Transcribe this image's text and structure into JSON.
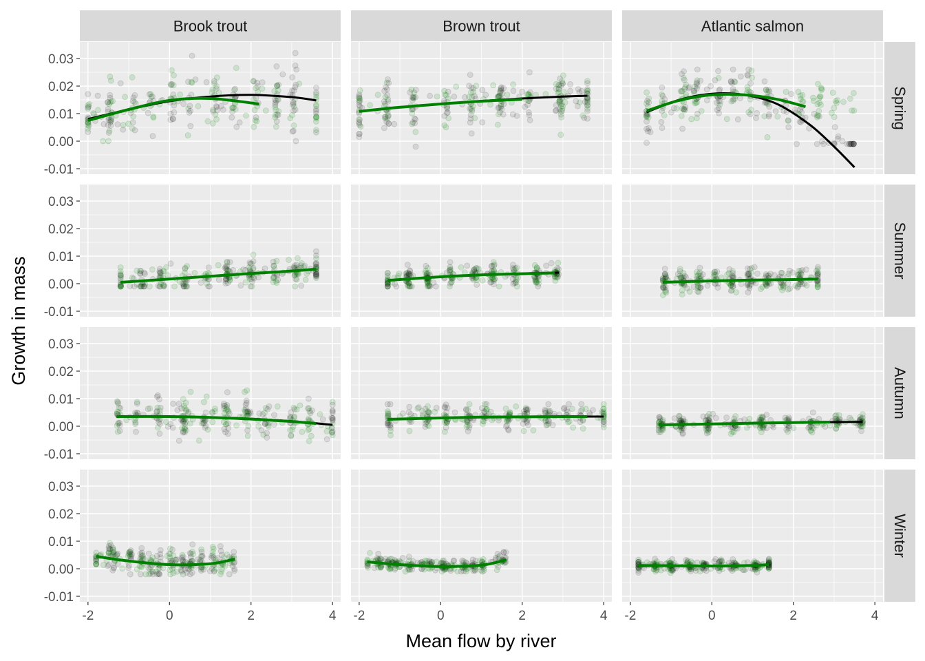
{
  "chart_data": {
    "type": "scatter",
    "xlabel": "Mean flow by river",
    "ylabel": "Growth in mass",
    "xlim": [
      -2.2,
      4.2
    ],
    "ylim": [
      -0.012,
      0.036
    ],
    "x_ticks": [
      -2,
      0,
      2,
      4
    ],
    "y_ticks": [
      -0.01,
      0.0,
      0.01,
      0.02,
      0.03
    ],
    "x_tick_labels": [
      "-2",
      "0",
      "2",
      "4"
    ],
    "y_tick_labels": [
      "-0.01",
      "0.00",
      "0.01",
      "0.02",
      "0.03"
    ],
    "columns": [
      "Brook trout",
      "Brown trout",
      "Atlantic salmon"
    ],
    "rows": [
      "Spring",
      "Summer",
      "Autumn",
      "Winter"
    ],
    "colors": {
      "black_series": "#000000",
      "green_series": "#008000",
      "panel_bg": "#ebebeb",
      "strip_bg": "#d9d9d9"
    },
    "grid": true,
    "legend": "none",
    "panels": [
      {
        "row": "Spring",
        "col": "Brook trout",
        "x_range": [
          -2.0,
          3.6
        ],
        "points_y_range": [
          0.0,
          0.033
        ],
        "black_fit": {
          "x": [
            -2.0,
            -1.0,
            0.0,
            1.0,
            2.0,
            3.0,
            3.6
          ],
          "y": [
            0.008,
            0.0115,
            0.0145,
            0.0162,
            0.0168,
            0.016,
            0.0148
          ]
        },
        "green_fit": {
          "x": [
            -2.0,
            -1.0,
            0.0,
            1.0,
            2.2
          ],
          "y": [
            0.0075,
            0.0115,
            0.0148,
            0.0155,
            0.0135
          ]
        }
      },
      {
        "row": "Spring",
        "col": "Brown trout",
        "x_range": [
          -2.0,
          3.6
        ],
        "points_y_range": [
          -0.002,
          0.025
        ],
        "black_fit": {
          "x": [
            -2.0,
            -1.0,
            0.0,
            1.0,
            2.0,
            3.0,
            3.6
          ],
          "y": [
            0.0108,
            0.0123,
            0.0135,
            0.0146,
            0.0155,
            0.0162,
            0.0165
          ]
        },
        "green_fit": {
          "x": [
            -2.0,
            -1.0,
            0.0,
            1.0,
            2.0
          ],
          "y": [
            0.0108,
            0.0123,
            0.0135,
            0.0145,
            0.0152
          ]
        }
      },
      {
        "row": "Spring",
        "col": "Atlantic salmon",
        "x_range": [
          -1.6,
          3.5
        ],
        "points_y_range": [
          -0.001,
          0.026
        ],
        "black_fit": {
          "x": [
            -1.6,
            -0.8,
            0.0,
            0.8,
            1.6,
            2.4,
            3.0,
            3.5
          ],
          "y": [
            0.0105,
            0.015,
            0.0172,
            0.0168,
            0.0135,
            0.006,
            -0.002,
            -0.0095
          ]
        },
        "green_fit": {
          "x": [
            -1.6,
            -0.8,
            0.0,
            0.8,
            1.6,
            2.3
          ],
          "y": [
            0.011,
            0.0148,
            0.0168,
            0.0168,
            0.0152,
            0.0125
          ]
        }
      },
      {
        "row": "Summer",
        "col": "Brook trout",
        "x_range": [
          -1.2,
          3.6
        ],
        "points_y_range": [
          -0.001,
          0.015
        ],
        "black_fit": {
          "x": [
            -1.2,
            0.0,
            1.0,
            2.0,
            3.0,
            3.6
          ],
          "y": [
            0.0005,
            0.0017,
            0.0027,
            0.0037,
            0.0046,
            0.0052
          ]
        },
        "green_fit": {
          "x": [
            -1.2,
            0.0,
            1.0,
            2.0,
            3.0,
            3.6
          ],
          "y": [
            0.0005,
            0.0017,
            0.0027,
            0.0037,
            0.0046,
            0.0053
          ]
        }
      },
      {
        "row": "Summer",
        "col": "Brown trout",
        "x_range": [
          -1.3,
          2.9
        ],
        "points_y_range": [
          -0.001,
          0.011
        ],
        "black_fit": {
          "x": [
            -1.3,
            0.0,
            1.0,
            2.0,
            2.9
          ],
          "y": [
            0.0012,
            0.0025,
            0.0032,
            0.0037,
            0.004
          ]
        },
        "green_fit": {
          "x": [
            -1.3,
            0.0,
            1.0,
            2.0,
            2.8
          ],
          "y": [
            0.0012,
            0.0025,
            0.0032,
            0.0036,
            0.0039
          ]
        }
      },
      {
        "row": "Summer",
        "col": "Atlantic salmon",
        "x_range": [
          -1.2,
          2.6
        ],
        "points_y_range": [
          -0.007,
          0.006
        ],
        "black_fit": {
          "x": [
            -1.2,
            0.0,
            1.0,
            2.0,
            2.6
          ],
          "y": [
            0.0005,
            0.001,
            0.0013,
            0.0015,
            0.0017
          ]
        },
        "green_fit": {
          "x": [
            -1.2,
            0.0,
            1.0,
            2.0,
            2.6
          ],
          "y": [
            0.0005,
            0.001,
            0.0013,
            0.0015,
            0.0017
          ]
        }
      },
      {
        "row": "Autumn",
        "col": "Brook trout",
        "x_range": [
          -1.3,
          4.0
        ],
        "points_y_range": [
          -0.01,
          0.013
        ],
        "black_fit": {
          "x": [
            -1.3,
            0.0,
            1.0,
            2.0,
            3.0,
            4.0
          ],
          "y": [
            0.0035,
            0.0035,
            0.0032,
            0.0027,
            0.0018,
            0.0005
          ]
        },
        "green_fit": {
          "x": [
            -1.3,
            0.0,
            1.0,
            2.0,
            3.0,
            3.6
          ],
          "y": [
            0.0035,
            0.0035,
            0.0032,
            0.0026,
            0.0017,
            0.001
          ]
        }
      },
      {
        "row": "Autumn",
        "col": "Brown trout",
        "x_range": [
          -1.3,
          4.0
        ],
        "points_y_range": [
          -0.005,
          0.008
        ],
        "black_fit": {
          "x": [
            -1.3,
            0.0,
            1.0,
            2.0,
            3.0,
            4.0
          ],
          "y": [
            0.0025,
            0.003,
            0.0033,
            0.0034,
            0.0035,
            0.0035
          ]
        },
        "green_fit": {
          "x": [
            -1.3,
            0.0,
            1.0,
            2.0,
            3.0,
            3.6
          ],
          "y": [
            0.0025,
            0.003,
            0.0033,
            0.0034,
            0.0035,
            0.0035
          ]
        }
      },
      {
        "row": "Autumn",
        "col": "Atlantic salmon",
        "x_range": [
          -1.3,
          3.7
        ],
        "points_y_range": [
          -0.004,
          0.005
        ],
        "black_fit": {
          "x": [
            -1.3,
            0.0,
            1.0,
            2.0,
            3.0,
            3.7
          ],
          "y": [
            0.0005,
            0.0008,
            0.0011,
            0.0013,
            0.0015,
            0.0016
          ]
        },
        "green_fit": {
          "x": [
            -1.3,
            0.0,
            1.0,
            2.0,
            2.9
          ],
          "y": [
            0.0005,
            0.0008,
            0.0011,
            0.0013,
            0.0015
          ]
        }
      },
      {
        "row": "Winter",
        "col": "Brook trout",
        "x_range": [
          -1.8,
          1.6
        ],
        "points_y_range": [
          -0.002,
          0.013
        ],
        "black_fit": {
          "x": [
            -1.8,
            -1.0,
            0.0,
            1.0,
            1.6
          ],
          "y": [
            0.0045,
            0.0028,
            0.0015,
            0.0018,
            0.0035
          ]
        },
        "green_fit": {
          "x": [
            -1.8,
            -1.0,
            0.0,
            1.0,
            1.6
          ],
          "y": [
            0.0045,
            0.0028,
            0.0015,
            0.0018,
            0.0035
          ]
        }
      },
      {
        "row": "Winter",
        "col": "Brown trout",
        "x_range": [
          -1.8,
          1.6
        ],
        "points_y_range": [
          -0.001,
          0.006
        ],
        "black_fit": {
          "x": [
            -1.8,
            -1.0,
            0.0,
            1.0,
            1.6
          ],
          "y": [
            0.0025,
            0.0015,
            0.0008,
            0.0013,
            0.0032
          ]
        },
        "green_fit": {
          "x": [
            -1.8,
            -1.0,
            0.0,
            1.0,
            1.6
          ],
          "y": [
            0.0025,
            0.0015,
            0.0008,
            0.0013,
            0.0032
          ]
        }
      },
      {
        "row": "Winter",
        "col": "Atlantic salmon",
        "x_range": [
          -1.8,
          1.4
        ],
        "points_y_range": [
          -0.002,
          0.004
        ],
        "black_fit": {
          "x": [
            -1.8,
            -1.0,
            0.0,
            1.0,
            1.4
          ],
          "y": [
            0.001,
            0.001,
            0.001,
            0.0012,
            0.0015
          ]
        },
        "green_fit": {
          "x": [
            -1.8,
            -1.0,
            0.0,
            1.0,
            1.4
          ],
          "y": [
            0.0012,
            0.0011,
            0.001,
            0.0012,
            0.0015
          ]
        }
      }
    ]
  }
}
